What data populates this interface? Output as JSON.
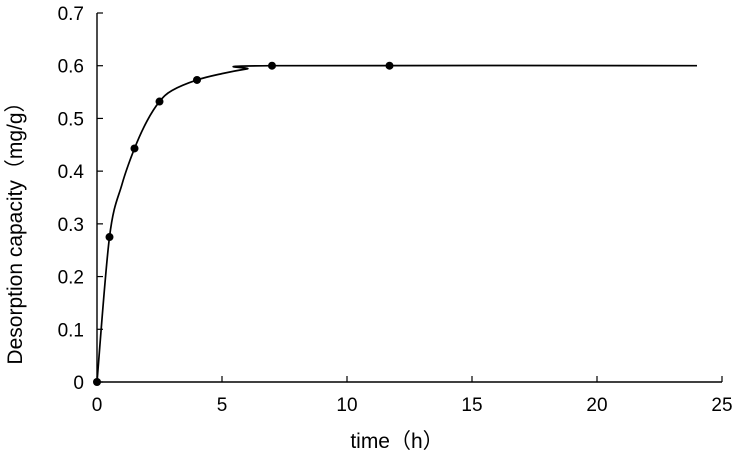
{
  "chart_data": {
    "type": "line",
    "title": "",
    "xlabel": "time（h）",
    "ylabel": "Desorption capacity（mg/g）",
    "xlim": [
      0,
      25
    ],
    "ylim": [
      0,
      0.7
    ],
    "x_ticks": [
      0,
      5,
      10,
      15,
      20,
      25
    ],
    "y_ticks": [
      0,
      0.1,
      0.2,
      0.3,
      0.4,
      0.5,
      0.6,
      0.7
    ],
    "x_tick_labels": [
      "0",
      "5",
      "10",
      "15",
      "20",
      "25"
    ],
    "y_tick_labels": [
      "0",
      "0.1",
      "0.2",
      "0.3",
      "0.4",
      "0.5",
      "0.6",
      "0.7"
    ],
    "grid": false,
    "legend": "none",
    "series": [
      {
        "points": [
          {
            "x": 0,
            "y": 0
          },
          {
            "x": 0.5,
            "y": 0.275
          },
          {
            "x": 1.5,
            "y": 0.443
          },
          {
            "x": 2.5,
            "y": 0.532
          },
          {
            "x": 4,
            "y": 0.573
          },
          {
            "x": 7,
            "y": 0.6
          },
          {
            "x": 11.7,
            "y": 0.6
          }
        ],
        "curve": [
          {
            "x": 0,
            "y": 0
          },
          {
            "x": 0.5,
            "y": 0.275
          },
          {
            "x": 1.0,
            "y": 0.375
          },
          {
            "x": 1.5,
            "y": 0.443
          },
          {
            "x": 2.0,
            "y": 0.495
          },
          {
            "x": 2.5,
            "y": 0.532
          },
          {
            "x": 3.0,
            "y": 0.553
          },
          {
            "x": 4.0,
            "y": 0.573
          },
          {
            "x": 5.0,
            "y": 0.585
          },
          {
            "x": 6.0,
            "y": 0.594
          },
          {
            "x": 7.0,
            "y": 0.6
          },
          {
            "x": 24.0,
            "y": 0.6
          }
        ],
        "color": "#000000"
      }
    ]
  }
}
